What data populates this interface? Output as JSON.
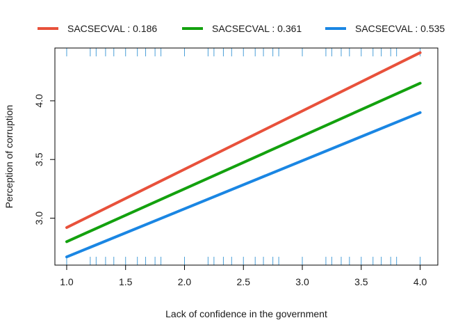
{
  "chart_data": {
    "type": "line",
    "title": "",
    "xlabel": "Lack of confidence in the government",
    "ylabel": "Perception of corruption",
    "xlim": [
      0.9,
      4.15
    ],
    "ylim": [
      2.6,
      4.45
    ],
    "xticks": [
      1.0,
      1.5,
      2.0,
      2.5,
      3.0,
      3.5,
      4.0
    ],
    "xtick_labels": [
      "1.0",
      "1.5",
      "2.0",
      "2.5",
      "3.0",
      "3.5",
      "4.0"
    ],
    "yticks": [
      3.0,
      3.5,
      4.0
    ],
    "ytick_labels": [
      "3.0",
      "3.5",
      "4.0"
    ],
    "legend_position": "top",
    "grid": false,
    "series": [
      {
        "name": "SACSECVAL : 0.186",
        "color": "#e8513b",
        "x": [
          1.0,
          4.0
        ],
        "y": [
          2.92,
          4.41
        ]
      },
      {
        "name": "SACSECVAL : 0.361",
        "color": "#13a10e",
        "x": [
          1.0,
          4.0
        ],
        "y": [
          2.8,
          4.15
        ]
      },
      {
        "name": "SACSECVAL : 0.535",
        "color": "#1a86e3",
        "x": [
          1.0,
          4.0
        ],
        "y": [
          2.67,
          3.9
        ]
      }
    ],
    "rug_top": [
      1.0,
      1.2,
      1.25,
      1.33,
      1.4,
      1.5,
      1.6,
      1.67,
      1.75,
      1.8,
      2.0,
      2.2,
      2.25,
      2.33,
      2.4,
      2.5,
      2.6,
      2.67,
      2.75,
      2.8,
      3.0,
      3.2,
      3.25,
      3.33,
      3.4,
      3.5,
      3.6,
      3.67,
      3.75,
      3.8,
      4.0
    ],
    "rug_bottom": [
      1.0,
      1.2,
      1.25,
      1.33,
      1.4,
      1.5,
      1.6,
      1.67,
      1.75,
      1.8,
      2.0,
      2.2,
      2.25,
      2.33,
      2.4,
      2.5,
      2.6,
      2.67,
      2.75,
      2.8,
      3.0,
      3.2,
      3.25,
      3.33,
      3.4,
      3.5,
      3.6,
      3.67,
      3.75,
      3.8,
      4.0
    ],
    "rug_color": "#4a9fd8"
  }
}
